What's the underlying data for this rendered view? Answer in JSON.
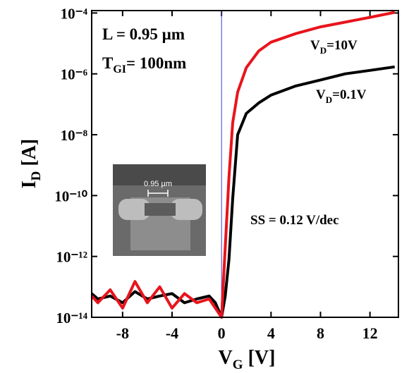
{
  "chart_data": {
    "type": "line",
    "xlabel": {
      "main": "V",
      "sub": "G",
      "unit": " [V]"
    },
    "ylabel": {
      "main": "I",
      "sub": "D",
      "unit": " [A]"
    },
    "annotations": {
      "length": "L = 0.95 µm",
      "tgi_main": "T",
      "tgi_sub": "GI",
      "tgi_rest": "= 100nm",
      "ss": "SS  = 0.12 V/dec",
      "inset_scale": "0.95 µm"
    },
    "log_y": true,
    "xlim": [
      -10.5,
      14.3
    ],
    "ylim": [
      1e-14,
      0.00012
    ],
    "xticks": [
      -8,
      -4,
      0,
      4,
      8,
      12
    ],
    "yticks": [
      {
        "value": 0.0001,
        "label": "10⁻⁴"
      },
      {
        "value": 1e-06,
        "label": "10⁻⁶"
      },
      {
        "value": 1e-08,
        "label": "10⁻⁸"
      },
      {
        "value": 1e-10,
        "label": "10⁻¹⁰"
      },
      {
        "value": 1e-12,
        "label": "10⁻¹²"
      },
      {
        "value": 1e-14,
        "label": "10⁻¹⁴"
      }
    ],
    "x": [
      -10.5,
      -10,
      -9,
      -8,
      -7,
      -6,
      -5,
      -4,
      -3,
      -2,
      -1,
      -0.5,
      0,
      0.3,
      0.6,
      0.9,
      1.3,
      2,
      3,
      4,
      6,
      8,
      10,
      12,
      14
    ],
    "series": [
      {
        "label": {
          "main": "V",
          "sub": "D",
          "rest": "=0.1V"
        },
        "color": "#000000",
        "values": [
          6e-14,
          4e-14,
          5e-14,
          3e-14,
          7e-14,
          4e-14,
          5e-14,
          6e-14,
          3e-14,
          4e-14,
          5e-14,
          3e-14,
          1e-14,
          5e-14,
          8e-13,
          8e-11,
          1e-08,
          5e-08,
          1.1e-07,
          2e-07,
          4e-07,
          6.3e-07,
          1e-06,
          1.3e-06,
          1.7e-06
        ]
      },
      {
        "label": {
          "main": "V",
          "sub": "D",
          "rest": "=10V"
        },
        "color": "#e8141c",
        "values": [
          5e-14,
          3e-14,
          8e-14,
          2e-14,
          1.5e-13,
          3e-14,
          1e-13,
          2e-14,
          6e-14,
          3e-14,
          4e-14,
          2e-14,
          1e-14,
          2e-12,
          4e-10,
          2.5e-08,
          2.5e-07,
          1.6e-06,
          5.6e-06,
          1.1e-05,
          2.1e-05,
          3.5e-05,
          5e-05,
          7.2e-05,
          0.000105
        ]
      }
    ]
  }
}
